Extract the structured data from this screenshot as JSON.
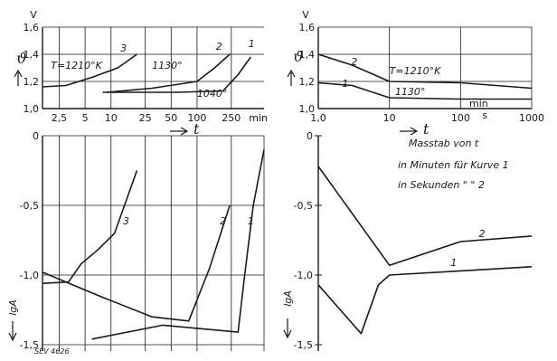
{
  "chart_data": [
    {
      "panel": "top-left",
      "type": "line",
      "xscale": "log",
      "xlabel": "t",
      "x_unit": "min",
      "x_ticks": [
        2.5,
        5,
        10,
        25,
        50,
        100,
        250
      ],
      "x_tick_labels": [
        "2,5",
        "5",
        "10",
        "25",
        "50",
        "100",
        "250"
      ],
      "y_unit": "V",
      "ylabel": "ϑ",
      "ylim": [
        1.0,
        1.6
      ],
      "y_ticks": [
        1.0,
        1.2,
        1.4,
        1.6
      ],
      "y_tick_labels": [
        "1,0",
        "1,2",
        "1,4",
        "1,6"
      ],
      "grid": true,
      "series": [
        {
          "name": "3",
          "annotation": "T=1210°K",
          "x": [
            1.6,
            3,
            6,
            12,
            20
          ],
          "y": [
            1.16,
            1.17,
            1.23,
            1.3,
            1.4
          ]
        },
        {
          "name": "2",
          "annotation": "1130°",
          "x": [
            9,
            30,
            100,
            160,
            240
          ],
          "y": [
            1.12,
            1.15,
            1.2,
            1.3,
            1.4
          ]
        },
        {
          "name": "1",
          "annotation": "1040°",
          "x": [
            8,
            60,
            200,
            300,
            420
          ],
          "y": [
            1.12,
            1.12,
            1.13,
            1.25,
            1.38
          ]
        }
      ]
    },
    {
      "panel": "bottom-left",
      "type": "line",
      "xscale": "log",
      "ylabel": "lgA",
      "ylim": [
        -1.5,
        0
      ],
      "y_ticks": [
        0,
        -0.5,
        -1.0,
        -1.5
      ],
      "y_tick_labels": [
        "0",
        "-0,5",
        "-1,0",
        "-1,5"
      ],
      "grid": true,
      "series": [
        {
          "name": "3",
          "x": [
            1.6,
            3.2,
            4.5,
            7,
            11,
            20
          ],
          "y": [
            -1.06,
            -1.05,
            -0.92,
            -0.82,
            -0.7,
            -0.25
          ]
        },
        {
          "name": "2",
          "x": [
            1.6,
            8,
            30,
            80,
            140,
            240
          ],
          "y": [
            -0.98,
            -1.16,
            -1.3,
            -1.33,
            -0.95,
            -0.5
          ]
        },
        {
          "name": "1",
          "x": [
            6,
            40,
            300,
            350,
            450,
            600
          ],
          "y": [
            -1.46,
            -1.36,
            -1.41,
            -1.05,
            -0.5,
            -0.1
          ]
        }
      ]
    },
    {
      "panel": "top-right",
      "type": "line",
      "xscale": "log",
      "xlabel": "t",
      "x_ticks": [
        1,
        10,
        100,
        1000
      ],
      "x_tick_labels": [
        "1,0",
        "10",
        "100",
        "1000"
      ],
      "x_unit_annotation": [
        "min",
        "s"
      ],
      "y_unit": "V",
      "ylabel": "ϑ",
      "ylim": [
        1.0,
        1.6
      ],
      "y_ticks": [
        1.0,
        1.2,
        1.4,
        1.6
      ],
      "y_tick_labels": [
        "1,0",
        "1,2",
        "1,4",
        "1,6"
      ],
      "grid": true,
      "annotations": [
        "T=1210°K",
        "1130°"
      ],
      "series": [
        {
          "name": "2",
          "x": [
            1,
            3,
            10,
            100,
            1000
          ],
          "y": [
            1.4,
            1.32,
            1.2,
            1.19,
            1.15
          ]
        },
        {
          "name": "1",
          "x": [
            1,
            3,
            10,
            100,
            1000
          ],
          "y": [
            1.19,
            1.17,
            1.08,
            1.07,
            1.07
          ]
        }
      ]
    },
    {
      "panel": "bottom-right",
      "type": "line",
      "xscale": "log",
      "ylabel": "lgA",
      "ylim": [
        -1.5,
        0
      ],
      "y_ticks": [
        0,
        -0.5,
        -1.0,
        -1.5
      ],
      "y_tick_labels": [
        "0",
        "-0,5",
        "-1,0",
        "-1,5"
      ],
      "grid": false,
      "annotations": [
        "Masstab von t",
        "in Minuten für Kurve 1",
        "in Sekunden   \"     \"   2"
      ],
      "series": [
        {
          "name": "2",
          "x": [
            1,
            10,
            100,
            1000
          ],
          "y": [
            -0.22,
            -0.93,
            -0.76,
            -0.72
          ]
        },
        {
          "name": "1",
          "x": [
            1,
            4,
            7,
            10,
            100,
            1000
          ],
          "y": [
            -1.07,
            -1.42,
            -1.07,
            -1.0,
            -0.97,
            -0.94
          ]
        }
      ]
    }
  ],
  "figure_code": "SEV 4626",
  "colors": {
    "ink": "#1a1a1a",
    "paper": "#ffffff"
  }
}
